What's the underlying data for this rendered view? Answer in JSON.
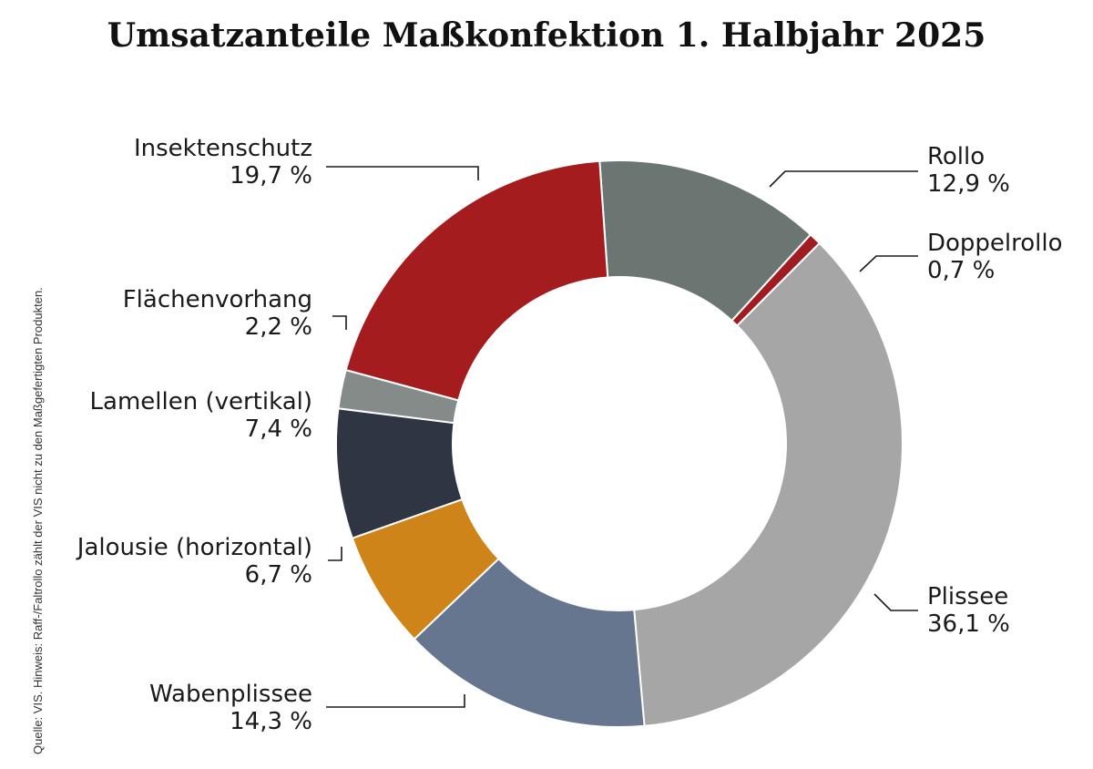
{
  "title": "Umsatzanteile Maßkonfektion 1. Halbjahr 2025",
  "source_note": "Quelle: VIS. Hinweis: Raff-/Faltrollo zählt der VIS nicht zu den Maßgefertigten Produkten.",
  "chart_data": {
    "type": "pie",
    "title": "Umsatzanteile Maßkonfektion 1. Halbjahr 2025",
    "donut": true,
    "unit": "%",
    "slices": [
      {
        "label": "Rollo",
        "value": 12.9,
        "value_label": "12,9 %",
        "color": "#6b7572"
      },
      {
        "label": "Doppelrollo",
        "value": 0.7,
        "value_label": "0,7 %",
        "color": "#a01c20"
      },
      {
        "label": "Plissee",
        "value": 36.1,
        "value_label": "36,1 %",
        "color": "#a6a6a6"
      },
      {
        "label": "Wabenplissee",
        "value": 14.3,
        "value_label": "14,3 %",
        "color": "#66768f"
      },
      {
        "label": "Jalousie (horizontal)",
        "value": 6.7,
        "value_label": "6,7 %",
        "color": "#cf8419"
      },
      {
        "label": "Lamellen (vertikal)",
        "value": 7.4,
        "value_label": "7,4 %",
        "color": "#303543"
      },
      {
        "label": "Flächenvorhang",
        "value": 2.2,
        "value_label": "2,2 %",
        "color": "#848b88"
      },
      {
        "label": "Insektenschutz",
        "value": 19.7,
        "value_label": "19,7 %",
        "color": "#a51c1f"
      }
    ]
  }
}
